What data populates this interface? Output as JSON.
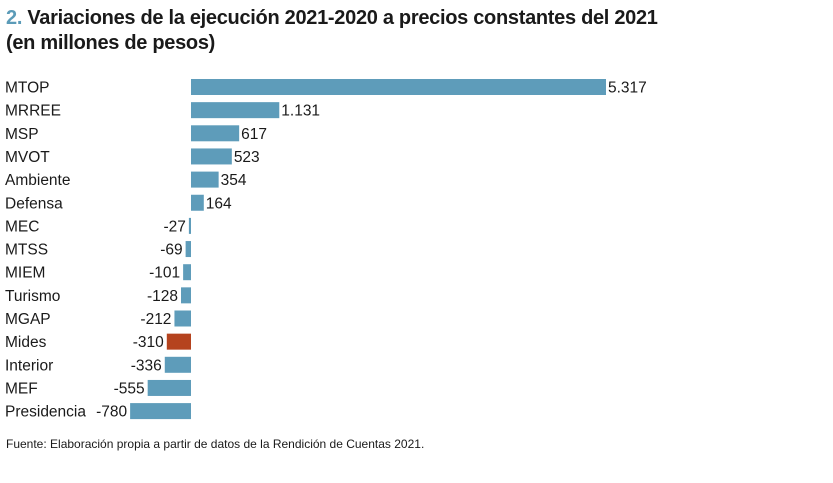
{
  "chart_data": {
    "type": "bar",
    "orientation": "horizontal",
    "title_number": "2.",
    "title": "Variaciones de la ejecución 2021-2020 a precios constantes del 2021",
    "subtitle": "(en millones de pesos)",
    "categories": [
      "MTOP",
      "MRREE",
      "MSP",
      "MVOT",
      "Ambiente",
      "Defensa",
      "MEC",
      "MTSS",
      "MIEM",
      "Turismo",
      "MGAP",
      "Mides",
      "Interior",
      "MEF",
      "Presidencia"
    ],
    "values": [
      5317,
      1131,
      617,
      523,
      354,
      164,
      -27,
      -69,
      -101,
      -128,
      -212,
      -310,
      -336,
      -555,
      -780
    ],
    "value_labels": [
      "5.317",
      "1.131",
      "617",
      "523",
      "354",
      "164",
      "-27",
      "-69",
      "-101",
      "-128",
      "-212",
      "-310",
      "-336",
      "-555",
      "-780"
    ],
    "highlight_category": "Mides",
    "bar_color": "#5e9cba",
    "highlight_color": "#b5431e",
    "xlim": [
      -780,
      5317
    ],
    "grid": false,
    "xlabel": "",
    "ylabel": ""
  },
  "source": "Fuente: Elaboración propia a partir de datos de la Rendición de Cuentas 2021."
}
